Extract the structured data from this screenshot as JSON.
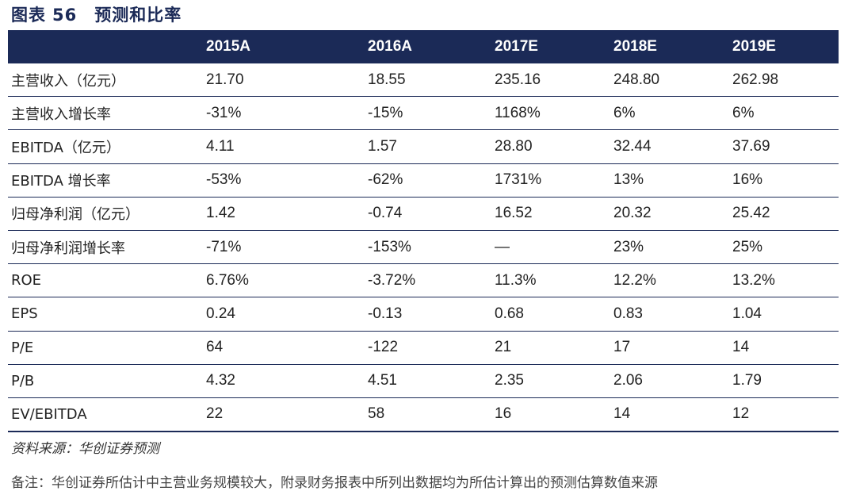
{
  "title": {
    "prefix": "图表",
    "number": "56",
    "text": "预测和比率"
  },
  "table": {
    "headers": [
      "",
      "2015A",
      "2016A",
      "2017E",
      "2018E",
      "2019E"
    ],
    "rows": [
      [
        "主营收入（亿元）",
        "21.70",
        "18.55",
        "235.16",
        "248.80",
        "262.98"
      ],
      [
        "主营收入增长率",
        "-31%",
        "-15%",
        "1168%",
        "6%",
        "6%"
      ],
      [
        "EBITDA（亿元）",
        "4.11",
        "1.57",
        "28.80",
        "32.44",
        "37.69"
      ],
      [
        "EBITDA 增长率",
        "-53%",
        "-62%",
        "1731%",
        "13%",
        "16%"
      ],
      [
        "归母净利润（亿元）",
        "1.42",
        "-0.74",
        "16.52",
        "20.32",
        "25.42"
      ],
      [
        "归母净利润增长率",
        "-71%",
        "-153%",
        "—",
        "23%",
        "25%"
      ],
      [
        "ROE",
        "6.76%",
        "-3.72%",
        "11.3%",
        "12.2%",
        "13.2%"
      ],
      [
        "EPS",
        "0.24",
        "-0.13",
        "0.68",
        "0.83",
        "1.04"
      ],
      [
        "P/E",
        "64",
        "-122",
        "21",
        "17",
        "14"
      ],
      [
        "P/B",
        "4.32",
        "4.51",
        "2.35",
        "2.06",
        "1.79"
      ],
      [
        "EV/EBITDA",
        "22",
        "58",
        "16",
        "14",
        "12"
      ]
    ]
  },
  "source": "资料来源：华创证券预测",
  "footnote": "备注：华创证券所估计中主营业务规模较大，附录财务报表中所列出数据均为所估计算出的预测估算数值来源"
}
